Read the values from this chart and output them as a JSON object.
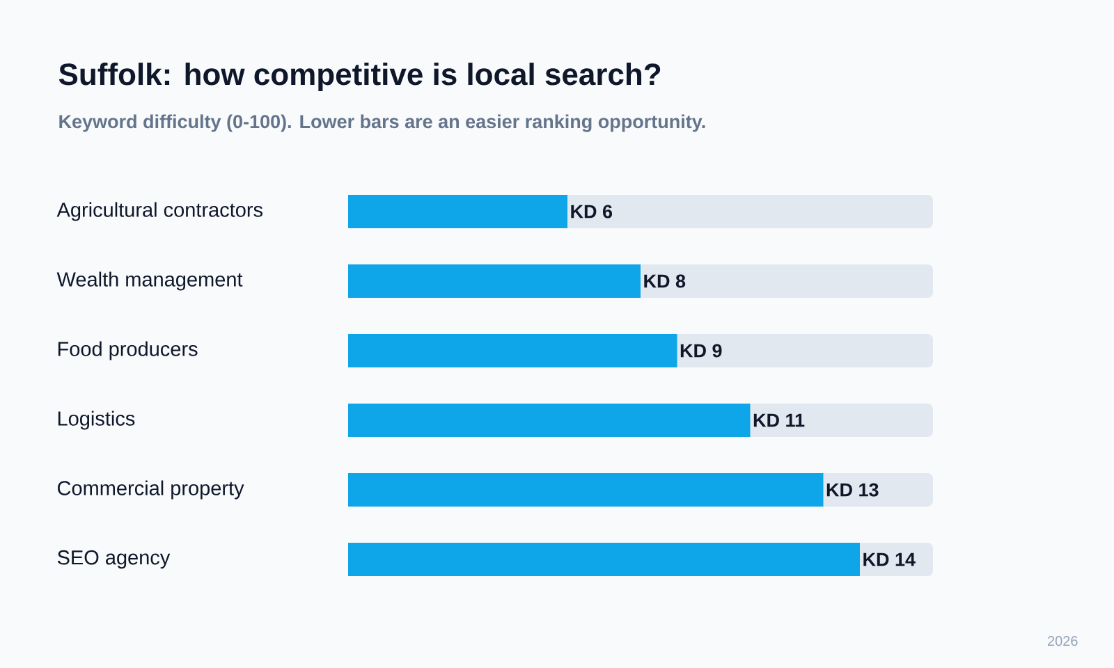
{
  "chart_data": {
    "type": "bar",
    "orientation": "horizontal",
    "title": "Suffolk: how competitive is local search?",
    "subtitle": "Keyword difficulty (0-100). Lower bars are an easier ranking opportunity.",
    "categories": [
      "Agricultural contractors",
      "Wealth management",
      "Food producers",
      "Logistics",
      "Commercial property",
      "SEO agency"
    ],
    "values": [
      6,
      8,
      9,
      11,
      13,
      14
    ],
    "value_labels": [
      "KD 6",
      "KD 8",
      "KD 9",
      "KD 11",
      "KD 13",
      "KD 14"
    ],
    "color": "#0ea5e9",
    "xlim": [
      0,
      16
    ],
    "tick_labels": "y",
    "annotations": [
      "2026"
    ]
  }
}
